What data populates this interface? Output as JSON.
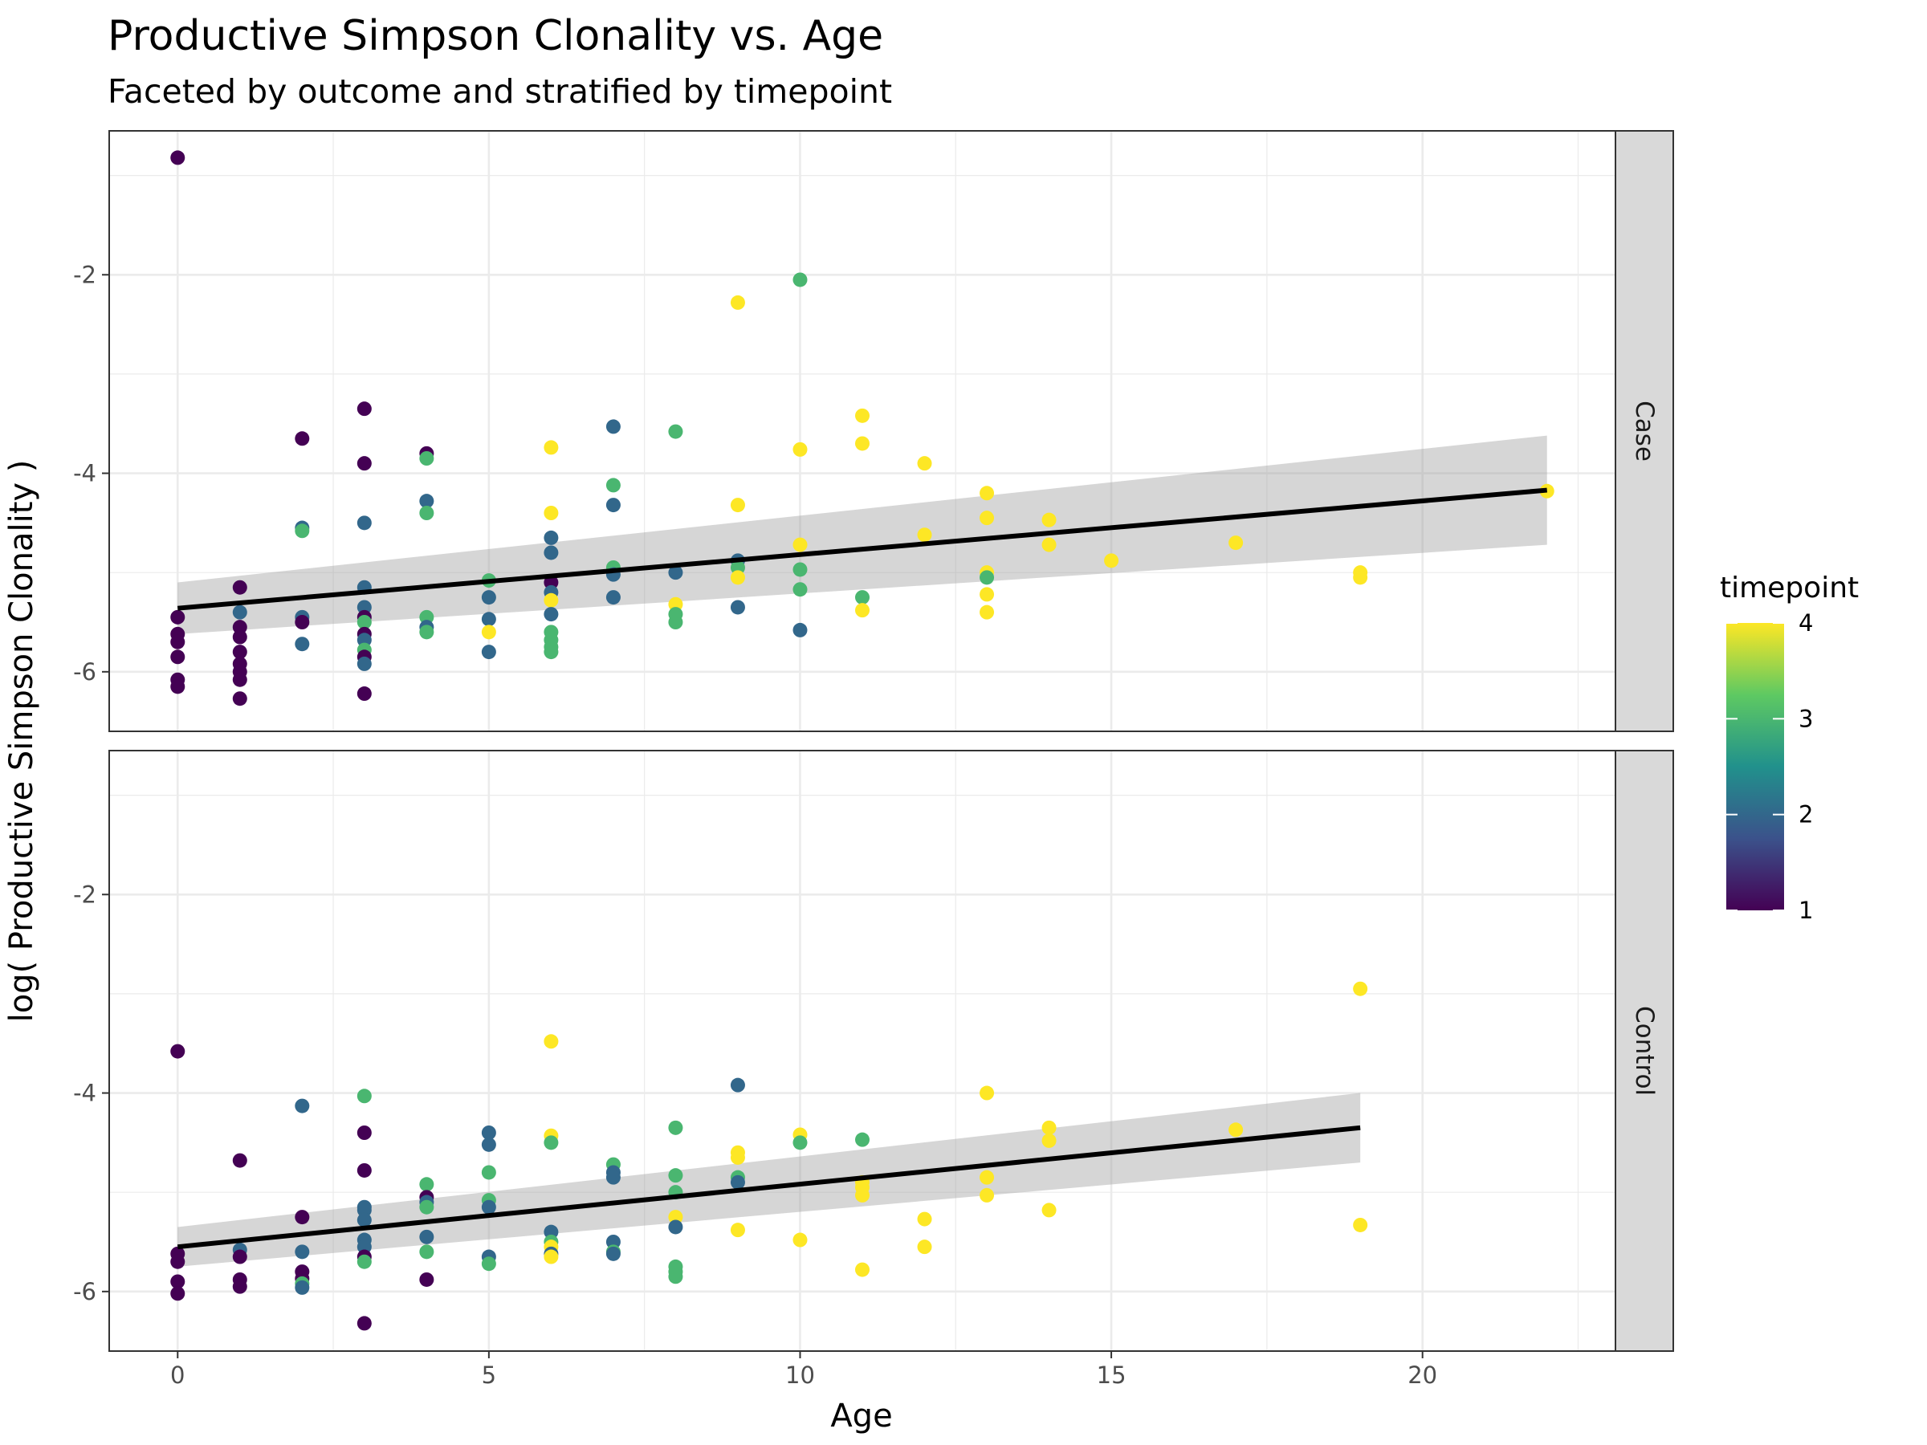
{
  "chart_data": {
    "type": "scatter",
    "title": "Productive Simpson Clonality vs. Age",
    "subtitle": "Faceted by outcome and stratified by timepoint",
    "xlabel": "Age",
    "ylabel": "log( Productive Simpson Clonality )",
    "xlim": [
      -1.1,
      23.1
    ],
    "ylim": [
      -6.6,
      -0.55
    ],
    "x_ticks": [
      0,
      5,
      10,
      15,
      20
    ],
    "y_ticks": [
      -2,
      -4,
      -6
    ],
    "grid": true,
    "facet_by": "outcome",
    "color_by": "timepoint",
    "legend": {
      "title": "timepoint",
      "position": "right",
      "labels": [
        "1",
        "2",
        "3",
        "4"
      ],
      "range": [
        1,
        4
      ],
      "palette": [
        "#440154",
        "#3b528b",
        "#21918c",
        "#5ec962",
        "#fde725"
      ]
    },
    "facets": [
      {
        "label": "Case",
        "fit": {
          "x": [
            0,
            22
          ],
          "y": [
            -5.36,
            -4.17
          ],
          "ci_lower": [
            -5.62,
            -4.72
          ],
          "ci_upper": [
            -5.1,
            -3.62
          ]
        },
        "points": [
          {
            "x": 0,
            "y": -0.82,
            "t": 1
          },
          {
            "x": 0,
            "y": -5.45,
            "t": 1
          },
          {
            "x": 0,
            "y": -5.62,
            "t": 1
          },
          {
            "x": 0,
            "y": -5.7,
            "t": 1
          },
          {
            "x": 0,
            "y": -5.85,
            "t": 1
          },
          {
            "x": 0,
            "y": -6.08,
            "t": 1
          },
          {
            "x": 0,
            "y": -6.15,
            "t": 1
          },
          {
            "x": 1,
            "y": -5.15,
            "t": 1
          },
          {
            "x": 1,
            "y": -5.4,
            "t": 2
          },
          {
            "x": 1,
            "y": -5.55,
            "t": 1
          },
          {
            "x": 1,
            "y": -5.65,
            "t": 1
          },
          {
            "x": 1,
            "y": -5.8,
            "t": 1
          },
          {
            "x": 1,
            "y": -5.92,
            "t": 1
          },
          {
            "x": 1,
            "y": -6.0,
            "t": 1
          },
          {
            "x": 1,
            "y": -6.08,
            "t": 1
          },
          {
            "x": 1,
            "y": -6.27,
            "t": 1
          },
          {
            "x": 2,
            "y": -3.65,
            "t": 1
          },
          {
            "x": 2,
            "y": -4.55,
            "t": 2
          },
          {
            "x": 2,
            "y": -4.58,
            "t": 3
          },
          {
            "x": 2,
            "y": -5.45,
            "t": 2
          },
          {
            "x": 2,
            "y": -5.5,
            "t": 1
          },
          {
            "x": 2,
            "y": -5.72,
            "t": 2
          },
          {
            "x": 3,
            "y": -3.35,
            "t": 1
          },
          {
            "x": 3,
            "y": -3.9,
            "t": 1
          },
          {
            "x": 3,
            "y": -4.5,
            "t": 2
          },
          {
            "x": 3,
            "y": -5.15,
            "t": 2
          },
          {
            "x": 3,
            "y": -5.35,
            "t": 2
          },
          {
            "x": 3,
            "y": -5.45,
            "t": 1
          },
          {
            "x": 3,
            "y": -5.5,
            "t": 3
          },
          {
            "x": 3,
            "y": -5.62,
            "t": 1
          },
          {
            "x": 3,
            "y": -5.68,
            "t": 2
          },
          {
            "x": 3,
            "y": -5.78,
            "t": 3
          },
          {
            "x": 3,
            "y": -5.85,
            "t": 1
          },
          {
            "x": 3,
            "y": -5.92,
            "t": 2
          },
          {
            "x": 3,
            "y": -6.22,
            "t": 1
          },
          {
            "x": 4,
            "y": -3.8,
            "t": 1
          },
          {
            "x": 4,
            "y": -3.85,
            "t": 3
          },
          {
            "x": 4,
            "y": -4.28,
            "t": 2
          },
          {
            "x": 4,
            "y": -4.4,
            "t": 3
          },
          {
            "x": 4,
            "y": -5.45,
            "t": 3
          },
          {
            "x": 4,
            "y": -5.55,
            "t": 2
          },
          {
            "x": 4,
            "y": -5.6,
            "t": 3
          },
          {
            "x": 5,
            "y": -5.08,
            "t": 3
          },
          {
            "x": 5,
            "y": -5.25,
            "t": 2
          },
          {
            "x": 5,
            "y": -5.47,
            "t": 2
          },
          {
            "x": 5,
            "y": -5.6,
            "t": 4
          },
          {
            "x": 5,
            "y": -5.8,
            "t": 2
          },
          {
            "x": 6,
            "y": -3.74,
            "t": 4
          },
          {
            "x": 6,
            "y": -4.4,
            "t": 4
          },
          {
            "x": 6,
            "y": -4.65,
            "t": 2
          },
          {
            "x": 6,
            "y": -4.8,
            "t": 2
          },
          {
            "x": 6,
            "y": -5.1,
            "t": 1
          },
          {
            "x": 6,
            "y": -5.2,
            "t": 2
          },
          {
            "x": 6,
            "y": -5.28,
            "t": 4
          },
          {
            "x": 6,
            "y": -5.42,
            "t": 2
          },
          {
            "x": 6,
            "y": -5.6,
            "t": 3
          },
          {
            "x": 6,
            "y": -5.68,
            "t": 3
          },
          {
            "x": 6,
            "y": -5.75,
            "t": 3
          },
          {
            "x": 6,
            "y": -5.8,
            "t": 3
          },
          {
            "x": 7,
            "y": -3.53,
            "t": 2
          },
          {
            "x": 7,
            "y": -4.12,
            "t": 3
          },
          {
            "x": 7,
            "y": -4.32,
            "t": 2
          },
          {
            "x": 7,
            "y": -4.95,
            "t": 3
          },
          {
            "x": 7,
            "y": -5.02,
            "t": 2
          },
          {
            "x": 7,
            "y": -5.25,
            "t": 2
          },
          {
            "x": 8,
            "y": -3.58,
            "t": 3
          },
          {
            "x": 8,
            "y": -5.0,
            "t": 2
          },
          {
            "x": 8,
            "y": -5.32,
            "t": 4
          },
          {
            "x": 8,
            "y": -5.42,
            "t": 3
          },
          {
            "x": 8,
            "y": -5.5,
            "t": 3
          },
          {
            "x": 9,
            "y": -2.28,
            "t": 4
          },
          {
            "x": 9,
            "y": -4.32,
            "t": 4
          },
          {
            "x": 9,
            "y": -4.88,
            "t": 2
          },
          {
            "x": 9,
            "y": -4.95,
            "t": 3
          },
          {
            "x": 9,
            "y": -5.05,
            "t": 4
          },
          {
            "x": 9,
            "y": -5.35,
            "t": 2
          },
          {
            "x": 10,
            "y": -2.05,
            "t": 3
          },
          {
            "x": 10,
            "y": -3.76,
            "t": 4
          },
          {
            "x": 10,
            "y": -4.72,
            "t": 4
          },
          {
            "x": 10,
            "y": -4.97,
            "t": 3
          },
          {
            "x": 10,
            "y": -5.17,
            "t": 3
          },
          {
            "x": 10,
            "y": -5.58,
            "t": 2
          },
          {
            "x": 11,
            "y": -3.42,
            "t": 4
          },
          {
            "x": 11,
            "y": -3.7,
            "t": 4
          },
          {
            "x": 11,
            "y": -5.25,
            "t": 3
          },
          {
            "x": 11,
            "y": -5.38,
            "t": 4
          },
          {
            "x": 12,
            "y": -3.9,
            "t": 4
          },
          {
            "x": 12,
            "y": -4.62,
            "t": 4
          },
          {
            "x": 13,
            "y": -4.2,
            "t": 4
          },
          {
            "x": 13,
            "y": -4.45,
            "t": 4
          },
          {
            "x": 13,
            "y": -5.0,
            "t": 4
          },
          {
            "x": 13,
            "y": -5.05,
            "t": 3
          },
          {
            "x": 13,
            "y": -5.22,
            "t": 4
          },
          {
            "x": 13,
            "y": -5.4,
            "t": 4
          },
          {
            "x": 14,
            "y": -4.47,
            "t": 4
          },
          {
            "x": 14,
            "y": -4.72,
            "t": 4
          },
          {
            "x": 15,
            "y": -4.88,
            "t": 4
          },
          {
            "x": 17,
            "y": -4.7,
            "t": 4
          },
          {
            "x": 19,
            "y": -5.0,
            "t": 4
          },
          {
            "x": 19,
            "y": -5.05,
            "t": 4
          },
          {
            "x": 22,
            "y": -4.18,
            "t": 4
          }
        ]
      },
      {
        "label": "Control",
        "fit": {
          "x": [
            0,
            19
          ],
          "y": [
            -5.55,
            -4.35
          ],
          "ci_lower": [
            -5.75,
            -4.7
          ],
          "ci_upper": [
            -5.35,
            -4.0
          ]
        },
        "points": [
          {
            "x": 0,
            "y": -3.58,
            "t": 1
          },
          {
            "x": 0,
            "y": -5.62,
            "t": 1
          },
          {
            "x": 0,
            "y": -5.7,
            "t": 1
          },
          {
            "x": 0,
            "y": -5.9,
            "t": 1
          },
          {
            "x": 0,
            "y": -6.02,
            "t": 1
          },
          {
            "x": 1,
            "y": -4.68,
            "t": 1
          },
          {
            "x": 1,
            "y": -5.58,
            "t": 2
          },
          {
            "x": 1,
            "y": -5.65,
            "t": 1
          },
          {
            "x": 1,
            "y": -5.88,
            "t": 1
          },
          {
            "x": 1,
            "y": -5.95,
            "t": 1
          },
          {
            "x": 2,
            "y": -4.13,
            "t": 2
          },
          {
            "x": 2,
            "y": -5.25,
            "t": 1
          },
          {
            "x": 2,
            "y": -5.6,
            "t": 2
          },
          {
            "x": 2,
            "y": -5.8,
            "t": 1
          },
          {
            "x": 2,
            "y": -5.87,
            "t": 1
          },
          {
            "x": 2,
            "y": -5.92,
            "t": 3
          },
          {
            "x": 2,
            "y": -5.96,
            "t": 2
          },
          {
            "x": 3,
            "y": -4.03,
            "t": 3
          },
          {
            "x": 3,
            "y": -4.4,
            "t": 1
          },
          {
            "x": 3,
            "y": -4.78,
            "t": 1
          },
          {
            "x": 3,
            "y": -5.15,
            "t": 2
          },
          {
            "x": 3,
            "y": -5.18,
            "t": 2
          },
          {
            "x": 3,
            "y": -5.28,
            "t": 2
          },
          {
            "x": 3,
            "y": -5.48,
            "t": 2
          },
          {
            "x": 3,
            "y": -5.55,
            "t": 2
          },
          {
            "x": 3,
            "y": -5.65,
            "t": 1
          },
          {
            "x": 3,
            "y": -5.7,
            "t": 3
          },
          {
            "x": 3,
            "y": -6.32,
            "t": 1
          },
          {
            "x": 4,
            "y": -4.92,
            "t": 3
          },
          {
            "x": 4,
            "y": -5.05,
            "t": 1
          },
          {
            "x": 4,
            "y": -5.1,
            "t": 2
          },
          {
            "x": 4,
            "y": -5.15,
            "t": 3
          },
          {
            "x": 4,
            "y": -5.45,
            "t": 2
          },
          {
            "x": 4,
            "y": -5.6,
            "t": 3
          },
          {
            "x": 4,
            "y": -5.88,
            "t": 1
          },
          {
            "x": 5,
            "y": -4.4,
            "t": 2
          },
          {
            "x": 5,
            "y": -4.52,
            "t": 2
          },
          {
            "x": 5,
            "y": -4.8,
            "t": 3
          },
          {
            "x": 5,
            "y": -5.08,
            "t": 3
          },
          {
            "x": 5,
            "y": -5.15,
            "t": 2
          },
          {
            "x": 5,
            "y": -5.65,
            "t": 2
          },
          {
            "x": 5,
            "y": -5.72,
            "t": 3
          },
          {
            "x": 6,
            "y": -3.48,
            "t": 4
          },
          {
            "x": 6,
            "y": -4.43,
            "t": 4
          },
          {
            "x": 6,
            "y": -4.5,
            "t": 3
          },
          {
            "x": 6,
            "y": -5.4,
            "t": 2
          },
          {
            "x": 6,
            "y": -5.5,
            "t": 3
          },
          {
            "x": 6,
            "y": -5.55,
            "t": 4
          },
          {
            "x": 6,
            "y": -5.62,
            "t": 2
          },
          {
            "x": 6,
            "y": -5.65,
            "t": 4
          },
          {
            "x": 7,
            "y": -4.72,
            "t": 3
          },
          {
            "x": 7,
            "y": -4.8,
            "t": 2
          },
          {
            "x": 7,
            "y": -4.85,
            "t": 2
          },
          {
            "x": 7,
            "y": -5.5,
            "t": 2
          },
          {
            "x": 7,
            "y": -5.6,
            "t": 3
          },
          {
            "x": 7,
            "y": -5.62,
            "t": 2
          },
          {
            "x": 8,
            "y": -4.35,
            "t": 3
          },
          {
            "x": 8,
            "y": -4.83,
            "t": 3
          },
          {
            "x": 8,
            "y": -5.0,
            "t": 3
          },
          {
            "x": 8,
            "y": -5.25,
            "t": 4
          },
          {
            "x": 8,
            "y": -5.35,
            "t": 2
          },
          {
            "x": 8,
            "y": -5.75,
            "t": 3
          },
          {
            "x": 8,
            "y": -5.8,
            "t": 3
          },
          {
            "x": 8,
            "y": -5.85,
            "t": 3
          },
          {
            "x": 9,
            "y": -3.92,
            "t": 2
          },
          {
            "x": 9,
            "y": -4.6,
            "t": 4
          },
          {
            "x": 9,
            "y": -4.65,
            "t": 4
          },
          {
            "x": 9,
            "y": -4.85,
            "t": 3
          },
          {
            "x": 9,
            "y": -4.9,
            "t": 2
          },
          {
            "x": 9,
            "y": -5.38,
            "t": 4
          },
          {
            "x": 10,
            "y": -4.42,
            "t": 4
          },
          {
            "x": 10,
            "y": -4.5,
            "t": 3
          },
          {
            "x": 10,
            "y": -5.48,
            "t": 4
          },
          {
            "x": 11,
            "y": -4.47,
            "t": 3
          },
          {
            "x": 11,
            "y": -4.9,
            "t": 4
          },
          {
            "x": 11,
            "y": -4.95,
            "t": 4
          },
          {
            "x": 11,
            "y": -5.03,
            "t": 4
          },
          {
            "x": 11,
            "y": -5.78,
            "t": 4
          },
          {
            "x": 12,
            "y": -5.27,
            "t": 4
          },
          {
            "x": 12,
            "y": -5.55,
            "t": 4
          },
          {
            "x": 13,
            "y": -4.0,
            "t": 4
          },
          {
            "x": 13,
            "y": -4.85,
            "t": 4
          },
          {
            "x": 13,
            "y": -5.03,
            "t": 4
          },
          {
            "x": 14,
            "y": -4.35,
            "t": 4
          },
          {
            "x": 14,
            "y": -4.48,
            "t": 4
          },
          {
            "x": 14,
            "y": -5.18,
            "t": 4
          },
          {
            "x": 17,
            "y": -4.37,
            "t": 4
          },
          {
            "x": 19,
            "y": -2.95,
            "t": 4
          },
          {
            "x": 19,
            "y": -5.33,
            "t": 4
          }
        ]
      }
    ]
  }
}
